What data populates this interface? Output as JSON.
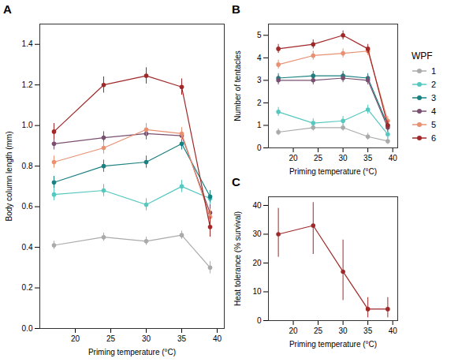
{
  "chart_data": [
    {
      "type": "line",
      "title": "A",
      "x_label": "Priming temperature (°C)",
      "y_label": "Body column length (mm)",
      "x": [
        17,
        24,
        30,
        35,
        39
      ],
      "series": [
        {
          "color": "#aaaaaa",
          "values": [
            0.41,
            0.45,
            0.43,
            0.46,
            0.3
          ],
          "yerr": [
            0.02,
            0.02,
            0.02,
            0.02,
            0.03
          ]
        },
        {
          "color": "#55c8c0",
          "values": [
            0.66,
            0.68,
            0.61,
            0.7,
            0.64
          ],
          "yerr": [
            0.03,
            0.03,
            0.03,
            0.03,
            0.03
          ]
        },
        {
          "color": "#1a8080",
          "values": [
            0.72,
            0.8,
            0.82,
            0.91,
            0.65
          ],
          "yerr": [
            0.03,
            0.03,
            0.03,
            0.03,
            0.03
          ]
        },
        {
          "color": "#7a5070",
          "values": [
            0.91,
            0.94,
            0.96,
            0.95,
            0.57
          ],
          "yerr": [
            0.03,
            0.03,
            0.03,
            0.03,
            0.04
          ]
        },
        {
          "color": "#e89070",
          "values": [
            0.82,
            0.89,
            0.98,
            0.96,
            0.55
          ],
          "yerr": [
            0.03,
            0.03,
            0.03,
            0.03,
            0.04
          ]
        },
        {
          "color": "#a02828",
          "values": [
            0.97,
            1.2,
            1.245,
            1.19,
            0.5
          ],
          "yerr": [
            0.04,
            0.04,
            0.04,
            0.04,
            0.05
          ]
        }
      ],
      "xlim": [
        15,
        41
      ],
      "xticks": [
        20,
        25,
        30,
        35,
        40
      ],
      "ylim": [
        0.0,
        1.5
      ],
      "yticks": [
        {
          "value": 0,
          "label": "0.0"
        },
        0.2,
        0.4,
        0.6,
        0.8,
        {
          "value": 1,
          "label": "1.0"
        },
        1.2,
        1.4
      ],
      "marker": "o"
    },
    {
      "type": "line",
      "title": "B",
      "x_label": "Priming temperature (°C)",
      "y_label": "Number of tentacles",
      "x": [
        17,
        24,
        30,
        35,
        39
      ],
      "series": [
        {
          "name": "1",
          "color": "#aaaaaa",
          "values": [
            0.7,
            0.9,
            0.9,
            0.5,
            0.3
          ],
          "yerr": [
            0.15,
            0.15,
            0.15,
            0.15,
            0.15
          ]
        },
        {
          "name": "2",
          "color": "#55c8c0",
          "values": [
            1.6,
            1.1,
            1.2,
            1.7,
            0.6
          ],
          "yerr": [
            0.2,
            0.2,
            0.2,
            0.2,
            0.2
          ]
        },
        {
          "name": "3",
          "color": "#1a8080",
          "values": [
            3.1,
            3.2,
            3.2,
            3.1,
            1.0
          ],
          "yerr": [
            0.2,
            0.2,
            0.2,
            0.2,
            0.2
          ]
        },
        {
          "name": "4",
          "color": "#7a5070",
          "values": [
            3.0,
            3.0,
            3.1,
            3.0,
            0.9
          ],
          "yerr": [
            0.2,
            0.2,
            0.2,
            0.2,
            0.2
          ]
        },
        {
          "name": "5",
          "color": "#e89070",
          "values": [
            3.7,
            4.1,
            4.2,
            4.3,
            1.2
          ],
          "yerr": [
            0.2,
            0.2,
            0.2,
            0.2,
            0.2
          ]
        },
        {
          "name": "6",
          "color": "#a02828",
          "values": [
            4.4,
            4.6,
            5.0,
            4.4,
            1.0
          ],
          "yerr": [
            0.2,
            0.2,
            0.2,
            0.2,
            0.2
          ]
        }
      ],
      "xlim": [
        15,
        41
      ],
      "xticks": [
        20,
        25,
        30,
        35,
        40
      ],
      "ylim": [
        0,
        5.5
      ],
      "yticks": [
        0,
        1,
        2,
        3,
        4,
        5
      ],
      "legend": "right",
      "legend_title": "WPF",
      "marker": "o"
    },
    {
      "type": "line",
      "title": "C",
      "x_label": "Priming temperature (°C)",
      "y_label": "Heat tolerance (% survival)",
      "x": [
        17,
        24,
        30,
        35,
        39
      ],
      "series": [
        {
          "color": "#a02828",
          "values": [
            30,
            33,
            17,
            4,
            4
          ],
          "yerr_lo": [
            8,
            10,
            10,
            3,
            3
          ],
          "yerr_hi": [
            9,
            8,
            11,
            4,
            4
          ]
        }
      ],
      "xlim": [
        15,
        41
      ],
      "xticks": [
        20,
        25,
        30,
        35,
        40
      ],
      "ylim": [
        0,
        43
      ],
      "yticks": [
        0,
        10,
        20,
        30,
        40
      ],
      "marker": "o"
    }
  ]
}
